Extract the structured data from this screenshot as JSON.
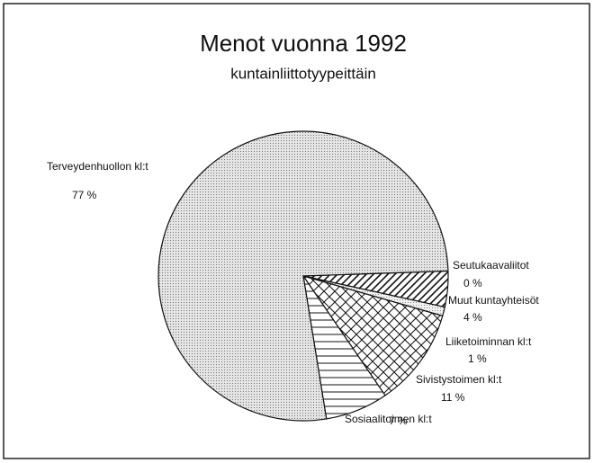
{
  "chart_data": {
    "type": "pie",
    "title": "Menot vuonna 1992",
    "subtitle": "kuntainliittotyypeittäin",
    "categories": [
      "Seutukaavaliitot",
      "Muut kuntayhteisöt",
      "Liiketoiminnan kl:t",
      "Sivistystoimen kl:t",
      "Sosiaalitoimen kl:t",
      "Terveydenhuollon kl:t"
    ],
    "values": [
      0,
      4,
      1,
      11,
      7,
      77
    ],
    "value_labels": [
      "0 %",
      "4 %",
      "1 %",
      "11 %",
      "7 %",
      "77 %"
    ],
    "patterns": [
      "solid",
      "diagonal",
      "light-dots",
      "crosshatch",
      "horizontal",
      "dots"
    ]
  }
}
